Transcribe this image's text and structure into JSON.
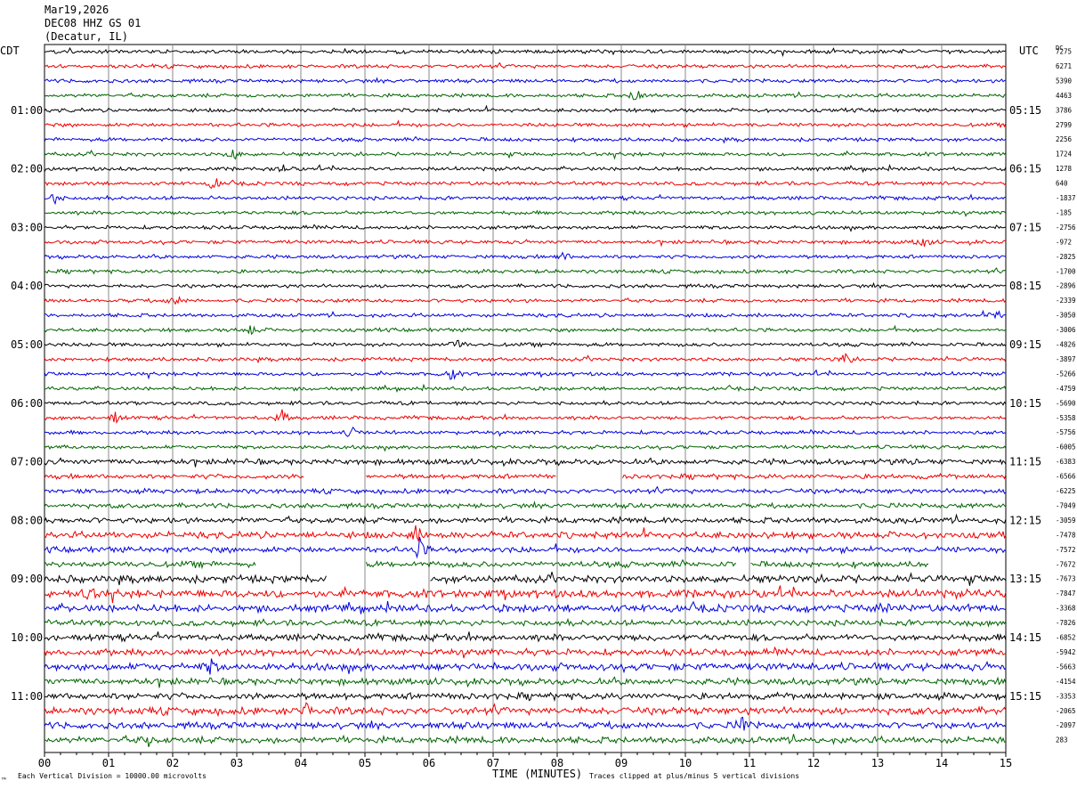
{
  "header": {
    "date": "Mar19,2026",
    "station": "DEC08 HHZ GS 01",
    "location": "(Decatur, IL)"
  },
  "left_timezone": "CDT",
  "right_timezone": "UTC",
  "dc_label": "DC",
  "corner_mark": "™",
  "footer": {
    "scale_note": "Each Vertical Division = 10000.00 microvolts",
    "xlabel": "TIME (MINUTES)",
    "clip_note": "Traces clipped at plus/minus 5 vertical divisions"
  },
  "chart_data": {
    "type": "line",
    "title": "",
    "xlabel": "TIME (MINUTES)",
    "xlim": [
      0,
      15
    ],
    "x_ticks": [
      "00",
      "01",
      "02",
      "03",
      "04",
      "05",
      "06",
      "07",
      "08",
      "09",
      "10",
      "11",
      "12",
      "13",
      "14",
      "15"
    ],
    "trace_colors": [
      "#000000",
      "#ee0000",
      "#0000dd",
      "#006400"
    ],
    "left_hour_labels": [
      {
        "trace": 4,
        "label": "01:00"
      },
      {
        "trace": 8,
        "label": "02:00"
      },
      {
        "trace": 12,
        "label": "03:00"
      },
      {
        "trace": 16,
        "label": "04:00"
      },
      {
        "trace": 20,
        "label": "05:00"
      },
      {
        "trace": 24,
        "label": "06:00"
      },
      {
        "trace": 28,
        "label": "07:00"
      },
      {
        "trace": 32,
        "label": "08:00"
      },
      {
        "trace": 36,
        "label": "09:00"
      },
      {
        "trace": 40,
        "label": "10:00"
      },
      {
        "trace": 44,
        "label": "11:00"
      }
    ],
    "right_hour_labels": [
      {
        "trace": 4,
        "label": "05:15"
      },
      {
        "trace": 8,
        "label": "06:15"
      },
      {
        "trace": 12,
        "label": "07:15"
      },
      {
        "trace": 16,
        "label": "08:15"
      },
      {
        "trace": 20,
        "label": "09:15"
      },
      {
        "trace": 24,
        "label": "10:15"
      },
      {
        "trace": 28,
        "label": "11:15"
      },
      {
        "trace": 32,
        "label": "12:15"
      },
      {
        "trace": 36,
        "label": "13:15"
      },
      {
        "trace": 40,
        "label": "14:15"
      },
      {
        "trace": 44,
        "label": "15:15"
      }
    ],
    "dc_offsets": [
      "7275",
      "6271",
      "5390",
      "4463",
      "3786",
      "2799",
      "2256",
      "1724",
      "1278",
      "640",
      "-1837",
      "-185",
      "-2756",
      "-972",
      "-2825",
      "-1700",
      "-2896",
      "-2339",
      "-3050",
      "-3006",
      "-4826",
      "-3897",
      "-5266",
      "-4759",
      "-5690",
      "-5358",
      "-5756",
      "-6005",
      "-6383",
      "-6566",
      "-6225",
      "-7049",
      "-3059",
      "-7478",
      "-7572",
      "-7672",
      "-7673",
      "-7847",
      "-3368",
      "-7826",
      "-6852",
      "-5942",
      "-5663",
      "-4154",
      "-3353",
      "-2065",
      "-2097",
      "283"
    ],
    "amplitude": [
      1,
      1,
      1,
      1,
      1,
      1,
      1,
      1,
      1,
      1,
      1,
      1,
      1,
      1,
      1,
      1,
      1,
      1,
      1,
      1,
      1,
      1,
      1,
      1,
      1,
      1,
      1,
      1,
      1.5,
      1.3,
      1.3,
      1.3,
      1.6,
      1.8,
      1.6,
      1.6,
      2,
      2.2,
      2,
      1.6,
      1.8,
      1.8,
      2,
      1.8,
      1.8,
      2,
      1.8,
      1.8
    ],
    "events": [
      {
        "trace": 3,
        "x": 9.25,
        "amp": 12
      },
      {
        "trace": 7,
        "x": 2.95,
        "amp": 7
      },
      {
        "trace": 8,
        "x": 3.75,
        "amp": 7
      },
      {
        "trace": 9,
        "x": 2.65,
        "amp": 8
      },
      {
        "trace": 10,
        "x": 0.15,
        "amp": 8
      },
      {
        "trace": 13,
        "x": 13.7,
        "amp": 9
      },
      {
        "trace": 14,
        "x": 8.1,
        "amp": 6
      },
      {
        "trace": 17,
        "x": 2.05,
        "amp": 7
      },
      {
        "trace": 18,
        "x": 14.85,
        "amp": 8
      },
      {
        "trace": 19,
        "x": 3.2,
        "amp": 8
      },
      {
        "trace": 20,
        "x": 6.45,
        "amp": 8
      },
      {
        "trace": 21,
        "x": 12.5,
        "amp": 8
      },
      {
        "trace": 22,
        "x": 6.35,
        "amp": 8
      },
      {
        "trace": 25,
        "x": 1.1,
        "amp": 7
      },
      {
        "trace": 25,
        "x": 3.7,
        "amp": 11
      },
      {
        "trace": 26,
        "x": 4.8,
        "amp": 8
      },
      {
        "trace": 33,
        "x": 5.8,
        "amp": 10
      },
      {
        "trace": 34,
        "x": 5.85,
        "amp": 13
      },
      {
        "trace": 37,
        "x": 0.7,
        "amp": 8
      },
      {
        "trace": 38,
        "x": 13.1,
        "amp": 8
      },
      {
        "trace": 42,
        "x": 2.6,
        "amp": 9
      },
      {
        "trace": 45,
        "x": 4.1,
        "amp": 9
      },
      {
        "trace": 46,
        "x": 10.9,
        "amp": 9
      },
      {
        "trace": 47,
        "x": 1.6,
        "amp": 8
      }
    ],
    "gaps": [
      {
        "trace": 29,
        "from": 4.05,
        "to": 5.0
      },
      {
        "trace": 29,
        "from": 8.0,
        "to": 9.0
      },
      {
        "trace": 35,
        "from": 3.3,
        "to": 5.0
      },
      {
        "trace": 35,
        "from": 10.8,
        "to": 11.0
      },
      {
        "trace": 35,
        "from": 13.8,
        "to": 15.0
      },
      {
        "trace": 36,
        "from": 4.4,
        "to": 6.0
      }
    ]
  }
}
